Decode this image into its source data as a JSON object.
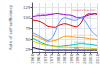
{
  "chart_data": {
    "type": "line",
    "ylabel": "Rate of self-sufficiency",
    "xlim": [
      1960,
      2010
    ],
    "ylim": [
      20,
      135
    ],
    "xticks": [
      1960,
      1965,
      1970,
      1975,
      1980,
      1985,
      1990,
      1995,
      2000,
      2005,
      2010
    ],
    "yticks": [
      25,
      50,
      75,
      100,
      125
    ],
    "grid": true,
    "x": [
      1960,
      1962,
      1964,
      1966,
      1968,
      1970,
      1972,
      1974,
      1976,
      1978,
      1980,
      1982,
      1984,
      1986,
      1988,
      1990,
      1992,
      1994,
      1996,
      1998,
      2000,
      2002,
      2004,
      2006,
      2008,
      2010
    ],
    "series": [
      {
        "name": "United States (US)",
        "color": "#dd0000",
        "values": [
          95,
          94,
          93,
          91,
          88,
          84,
          80,
          79,
          78,
          78,
          82,
          84,
          86,
          86,
          84,
          82,
          80,
          79,
          82,
          90,
          102,
          108,
          110,
          108,
          110,
          108
        ]
      },
      {
        "name": "Former USSR",
        "color": "#9900cc",
        "values": [
          103,
          104,
          105,
          105,
          106,
          106,
          107,
          108,
          109,
          110,
          110,
          109,
          108,
          107,
          107,
          106,
          104,
          101,
          100,
          101,
          103,
          105,
          107,
          109,
          110,
          109
        ]
      },
      {
        "name": "United Kingdom",
        "color": "#6699ff",
        "values": [
          65,
          62,
          59,
          56,
          52,
          49,
          46,
          50,
          56,
          70,
          85,
          95,
          100,
          100,
          98,
          96,
          94,
          95,
          98,
          100,
          96,
          87,
          77,
          68,
          62,
          57
        ]
      },
      {
        "name": "European Union",
        "color": "#ff9900",
        "values": [
          60,
          57,
          55,
          52,
          49,
          46,
          43,
          45,
          46,
          47,
          50,
          53,
          56,
          57,
          57,
          56,
          55,
          54,
          54,
          54,
          53,
          52,
          51,
          50,
          50,
          49
        ]
      },
      {
        "name": "Romania",
        "color": "#00bbbb",
        "values": [
          52,
          49,
          46,
          43,
          40,
          38,
          36,
          35,
          34,
          33,
          33,
          33,
          34,
          35,
          35,
          36,
          37,
          38,
          39,
          39,
          39,
          38,
          38,
          37,
          36,
          35
        ]
      },
      {
        "name": "Albania",
        "color": "#ddcc00",
        "values": [
          45,
          43,
          41,
          39,
          37,
          36,
          35,
          34,
          33,
          32,
          31,
          31,
          31,
          31,
          31,
          30,
          30,
          30,
          30,
          30,
          29,
          29,
          29,
          28,
          28,
          27
        ]
      },
      {
        "name": "Italy",
        "color": "#000066",
        "values": [
          30,
          29,
          27,
          26,
          25,
          24,
          24,
          24,
          24,
          24,
          24,
          24,
          24,
          24,
          24,
          24,
          24,
          24,
          24,
          24,
          24,
          24,
          24,
          24,
          24,
          24
        ]
      }
    ],
    "annotations": [
      {
        "text": "United States (US)",
        "x": 1991,
        "y": 118,
        "color": "#dd0000"
      },
      {
        "text": "Former USSR",
        "x": 1963,
        "y": 108,
        "color": "#9900cc"
      },
      {
        "text": "United Kingdom",
        "x": 1990,
        "y": 100,
        "color": "#6699ff"
      },
      {
        "text": "European Union",
        "x": 1992,
        "y": 59,
        "color": "#ff9900"
      },
      {
        "text": "Romania",
        "x": 1992,
        "y": 42,
        "color": "#00bbbb"
      },
      {
        "text": "Albania",
        "x": 1992,
        "y": 33,
        "color": "#ddcc00"
      },
      {
        "text": "Italy",
        "x": 1992,
        "y": 27,
        "color": "#000066"
      }
    ]
  }
}
